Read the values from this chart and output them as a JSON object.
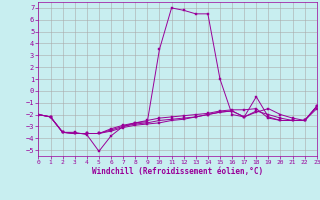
{
  "xlabel": "Windchill (Refroidissement éolien,°C)",
  "background_color": "#c8eef0",
  "grid_color": "#aaaaaa",
  "line_color": "#990099",
  "xlim": [
    0,
    23
  ],
  "ylim": [
    -5.5,
    7.5
  ],
  "xticks": [
    0,
    1,
    2,
    3,
    4,
    5,
    6,
    7,
    8,
    9,
    10,
    11,
    12,
    13,
    14,
    15,
    16,
    17,
    18,
    19,
    20,
    21,
    22,
    23
  ],
  "yticks": [
    -5,
    -4,
    -3,
    -2,
    -1,
    0,
    1,
    2,
    3,
    4,
    5,
    6,
    7
  ],
  "line_main": [
    -2.0,
    -2.2,
    -3.5,
    -3.5,
    -3.7,
    -5.1,
    -3.8,
    -3.0,
    -2.7,
    -2.6,
    3.5,
    7.0,
    6.8,
    6.5,
    6.5,
    1.0,
    -2.0,
    -2.2,
    -0.5,
    -2.2,
    -2.5,
    -2.5,
    -2.5,
    -1.5
  ],
  "line2": [
    -2.0,
    -2.2,
    -3.5,
    -3.6,
    -3.6,
    -3.6,
    -3.4,
    -3.1,
    -2.9,
    -2.8,
    -2.7,
    -2.5,
    -2.4,
    -2.2,
    -2.0,
    -1.8,
    -1.7,
    -2.2,
    -1.8,
    -1.5,
    -2.0,
    -2.3,
    -2.5,
    -1.3
  ],
  "line3": [
    -2.0,
    -2.2,
    -3.5,
    -3.6,
    -3.6,
    -3.6,
    -3.3,
    -3.0,
    -2.8,
    -2.7,
    -2.5,
    -2.4,
    -2.3,
    -2.2,
    -2.0,
    -1.8,
    -1.7,
    -2.2,
    -1.7,
    -2.0,
    -2.3,
    -2.5,
    -2.5,
    -1.3
  ],
  "line4": [
    -2.0,
    -2.2,
    -3.5,
    -3.6,
    -3.6,
    -3.6,
    -3.2,
    -2.9,
    -2.7,
    -2.5,
    -2.3,
    -2.2,
    -2.1,
    -2.0,
    -1.9,
    -1.7,
    -1.6,
    -1.6,
    -1.5,
    -2.3,
    -2.5,
    -2.5,
    -2.5,
    -1.3
  ]
}
